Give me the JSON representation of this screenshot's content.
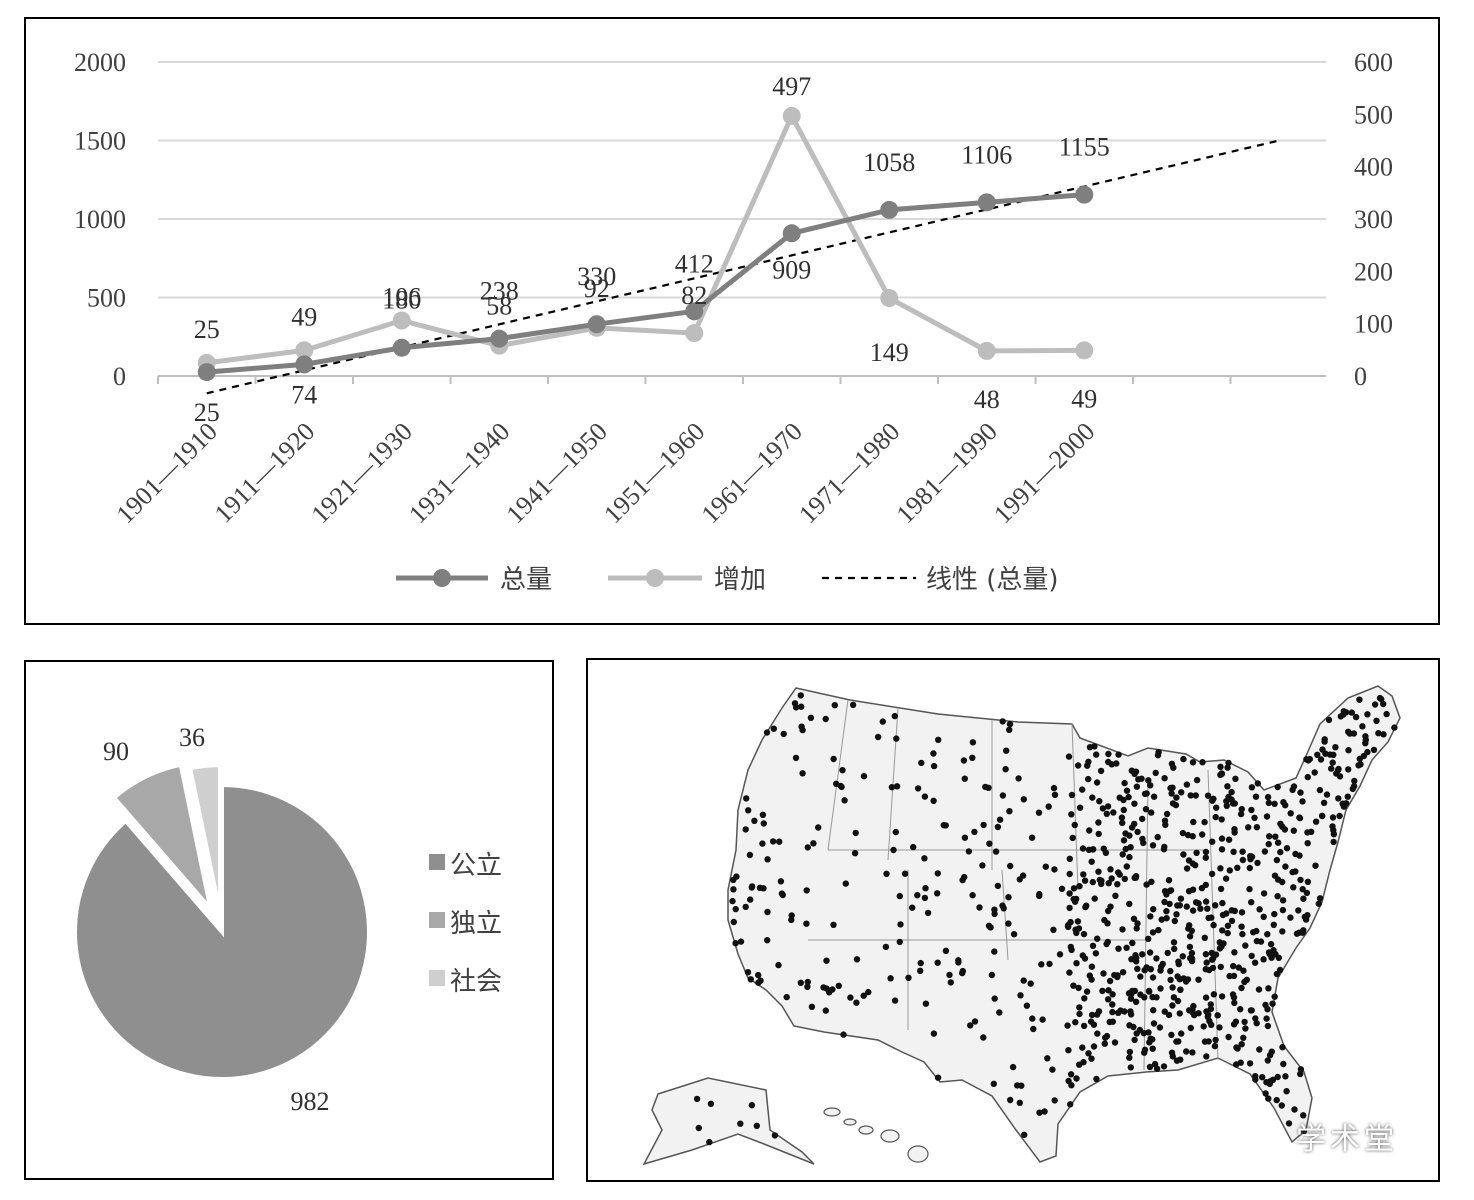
{
  "chart_data": [
    {
      "type": "line",
      "categories": [
        "1901—1910",
        "1911—1920",
        "1921—1930",
        "1931—1940",
        "1941—1950",
        "1951—1960",
        "1961—1970",
        "1971—1980",
        "1981—1990",
        "1991—2000"
      ],
      "series": [
        {
          "name": "总量",
          "axis": "left",
          "color": "#7f7f7f",
          "values": [
            25,
            74,
            180,
            238,
            330,
            412,
            909,
            1058,
            1106,
            1155
          ]
        },
        {
          "name": "增加",
          "axis": "right",
          "color": "#bdbdbd",
          "values": [
            25,
            49,
            106,
            58,
            92,
            82,
            497,
            149,
            48,
            49
          ]
        },
        {
          "name": "线性 (总量)",
          "type": "trendline",
          "style": "dashed",
          "color": "#000000",
          "from_value": -110,
          "to_value": 1500
        }
      ],
      "y_left": {
        "ylim": [
          0,
          2000
        ],
        "ticks": [
          0,
          500,
          1000,
          1500,
          2000
        ]
      },
      "y_right": {
        "ylim": [
          0,
          600
        ],
        "ticks": [
          0,
          100,
          200,
          300,
          400,
          500,
          600
        ]
      },
      "data_labels": {
        "total": [
          "25",
          "74",
          "180",
          "238",
          "330",
          "412",
          "909",
          "1058",
          "1106",
          "1155"
        ],
        "increase": [
          "25",
          "49",
          "106",
          "58",
          "92",
          "82",
          "497",
          "149",
          "48",
          "49"
        ]
      },
      "grid": true,
      "legend": "bottom",
      "legend_labels": [
        "总量",
        "增加",
        "线性 (总量)"
      ]
    },
    {
      "type": "pie",
      "slices": [
        {
          "label": "公立",
          "value": 982,
          "color": "#8f8f8f"
        },
        {
          "label": "独立",
          "value": 90,
          "color": "#a8a8a8",
          "exploded": true
        },
        {
          "label": "社会",
          "value": 36,
          "color": "#cfcfcf",
          "exploded": true
        }
      ],
      "legend": "right"
    }
  ],
  "map": {
    "type": "dot-map",
    "region": "United States"
  },
  "watermark": "学术堂"
}
